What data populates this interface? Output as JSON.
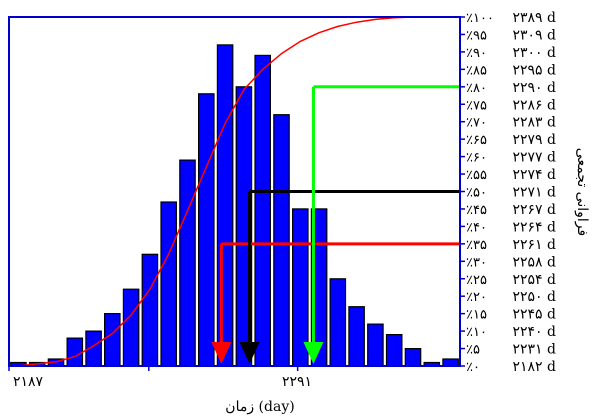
{
  "chart_data": {
    "type": "bar",
    "title": "",
    "xlabel": "زمان (day)",
    "ylabel": "فراوانی تجمعی",
    "x_tick_labels": [
      "۲۱۸۷",
      "۲۲۹۱"
    ],
    "bars": [
      1,
      1,
      2,
      8,
      10,
      15,
      22,
      32,
      47,
      59,
      78,
      92,
      80,
      89,
      72,
      45,
      45,
      25,
      17,
      12,
      9,
      5,
      1,
      2
    ],
    "bar_value_range": [
      0,
      100
    ],
    "cumulative_percent": [
      0,
      0.6,
      1.2,
      2.7,
      5.8,
      9.3,
      14.6,
      22.0,
      32.1,
      44.5,
      57.0,
      69.5,
      79.2,
      85.0,
      89.5,
      93.0,
      95.5,
      97.3,
      98.5,
      99.3,
      99.8,
      100,
      100,
      100
    ],
    "right_axis": {
      "range": [
        0,
        100
      ],
      "percent_labels": [
        "٪۰",
        "٪۵",
        "٪۱۰",
        "٪۱۵",
        "٪۲۰",
        "٪۲۵",
        "٪۳۰",
        "٪۳۵",
        "٪۴۰",
        "٪۴۵",
        "٪۵۰",
        "٪۵۵",
        "٪۶۰",
        "٪۶۵",
        "٪۷۰",
        "٪۷۵",
        "٪۸۰",
        "٪۸۵",
        "٪۹۰",
        "٪۹۵",
        "٪۱۰۰"
      ],
      "day_labels": [
        "۲۱۸۲ d",
        "۲۲۳۱ d",
        "۲۲۴۰ d",
        "۲۲۴۵ d",
        "۲۲۵۰ d",
        "۲۲۵۴ d",
        "۲۲۵۸ d",
        "۲۲۶۱ d",
        "۲۲۶۴ d",
        "۲۲۶۷ d",
        "۲۲۷۱ d",
        "۲۲۷۴ d",
        "۲۲۷۷ d",
        "۲۲۷۹ d",
        "۲۲۸۳ d",
        "۲۲۸۶ d",
        "۲۲۹۰ d",
        "۲۲۹۵ d",
        "۲۳۰۰ d",
        "۲۳۰۹ d",
        "۲۳۸۹ d"
      ]
    },
    "annotations": [
      {
        "percent": 35,
        "color": "#ff0000",
        "bar_index": 11.3
      },
      {
        "percent": 50,
        "color": "#000000",
        "bar_index": 12.8
      },
      {
        "percent": 80,
        "color": "#00ff00",
        "bar_index": 16.2
      }
    ],
    "colors": {
      "bar_fill": "#0000ff",
      "bar_edge": "#000000",
      "cumulative_line": "#ff0000",
      "frame": "#0000cc",
      "text": "#000000"
    }
  }
}
